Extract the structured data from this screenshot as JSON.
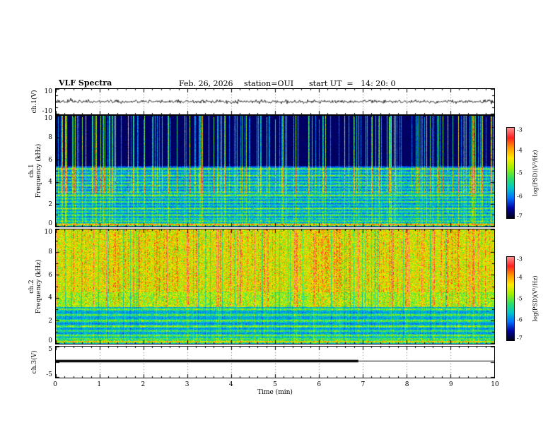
{
  "header": {
    "title": "VLF Spectra",
    "date": "Feb. 26, 2026",
    "station": "station=OUI",
    "start_ut": "start UT  =   14: 20: 0"
  },
  "x_axis": {
    "label": "Time (min)",
    "min": 0,
    "max": 10,
    "ticks": [
      0,
      1,
      2,
      3,
      4,
      5,
      6,
      7,
      8,
      9,
      10
    ]
  },
  "colorbar": {
    "label": "log(PSD)(V²/Hz)",
    "min": -7,
    "max": -3,
    "ticks": [
      -3,
      -4,
      -5,
      -6,
      -7
    ],
    "gradient": [
      "#ff9090",
      "#ff2020",
      "#ff9800",
      "#ffe800",
      "#a0f000",
      "#30e060",
      "#00c8c8",
      "#0070ff",
      "#0000a0",
      "#000018"
    ]
  },
  "panels": {
    "wave1": {
      "ylabel": "ch.1(V)",
      "ymin": -10,
      "ymax": 10,
      "ytick_labels": [
        10,
        -10
      ],
      "ytick_major": [
        10,
        0,
        -10
      ],
      "ytick_minor": [
        5,
        -5
      ]
    },
    "spec1": {
      "ylabel_line1": "ch.1",
      "ylabel_line2": "Frequency (kHz)",
      "ymin": 0,
      "ymax": 10,
      "ytick_labels": [
        10,
        8,
        6,
        4,
        2,
        0
      ],
      "ytick_major": [
        0,
        2,
        4,
        6,
        8,
        10
      ],
      "ytick_minor": [
        1,
        3,
        5,
        7,
        9
      ]
    },
    "spec2": {
      "ylabel_line1": "ch.2",
      "ylabel_line2": "Frequency (kHz)",
      "ymin": 0,
      "ymax": 10,
      "ytick_labels": [
        10,
        8,
        6,
        4,
        2,
        0
      ],
      "ytick_major": [
        0,
        2,
        4,
        6,
        8,
        10
      ],
      "ytick_minor": [
        1,
        3,
        5,
        7,
        9
      ]
    },
    "ch3": {
      "ylabel": "ch.3(V)",
      "ymin": -5,
      "ymax": 5,
      "ytick_labels": [
        5,
        -5
      ],
      "ytick_major": [
        5,
        0,
        -5
      ],
      "ytick_minor": []
    }
  },
  "chart_data": [
    {
      "type": "line",
      "name": "ch1_waveform",
      "panel": "wave1",
      "ylabel": "ch.1(V)",
      "ylim": [
        -10,
        10
      ],
      "x_minutes": [
        0,
        10
      ],
      "signal": {
        "kind": "continuous broadband noise centered on 0 V",
        "mean_V": 0,
        "rms_V": 1.3,
        "peak_V": 4
      }
    },
    {
      "type": "heatmap",
      "name": "ch1_spectrogram",
      "panel": "spec1",
      "ylabel": "ch.1 Frequency (kHz)",
      "ylim_khz": [
        0,
        10
      ],
      "x_minutes": [
        0,
        10
      ],
      "zlabel": "log(PSD)(V²/Hz)",
      "zlim": [
        -7,
        -3
      ],
      "background": [
        {
          "f_min": 5.5,
          "f_max": 10.01,
          "log_psd": -6.75
        },
        {
          "f_min": 0,
          "f_max": 5.5,
          "log_psd": -6.35
        }
      ],
      "bands": [
        {
          "f_khz": 5.2,
          "log_psd": -5.0
        },
        {
          "f_khz": 4.9,
          "log_psd": -5.5
        },
        {
          "f_khz": 4.6,
          "log_psd": -5.1
        },
        {
          "f_khz": 4.3,
          "log_psd": -5.5
        },
        {
          "f_khz": 4.0,
          "log_psd": -5.3
        },
        {
          "f_khz": 3.7,
          "log_psd": -5.1
        },
        {
          "f_khz": 3.4,
          "log_psd": -5.5
        },
        {
          "f_khz": 3.1,
          "log_psd": -5.2
        },
        {
          "f_khz": 2.8,
          "log_psd": -4.9
        },
        {
          "f_khz": 2.5,
          "log_psd": -5.4
        },
        {
          "f_khz": 2.2,
          "log_psd": -5.2
        },
        {
          "f_khz": 1.9,
          "log_psd": -5.5
        },
        {
          "f_khz": 1.6,
          "log_psd": -5.0
        },
        {
          "f_khz": 1.3,
          "log_psd": -5.3
        },
        {
          "f_khz": 1.0,
          "log_psd": -5.1
        },
        {
          "f_khz": 0.7,
          "log_psd": -5.4
        },
        {
          "f_khz": 0.45,
          "log_psd": -5.2
        },
        {
          "f_khz": 0.15,
          "log_psd": -3.8
        }
      ],
      "texture": {
        "streak_prob": 0.22,
        "streak_gain": 0.5,
        "strong_prob": 0.03,
        "strong_gain": 0.55,
        "dip_prob": 0,
        "dip_gain": 0,
        "f_split_khz": 3,
        "low_gain": 0.35
      },
      "note": "dark (~-6.8) background above 5.5 kHz crossed by impulsive broadband vertical sferic streaks; dense horizontal narrowband lines below 5.5 kHz; values estimated from colorbar"
    },
    {
      "type": "heatmap",
      "name": "ch2_spectrogram",
      "panel": "spec2",
      "ylabel": "ch.2 Frequency (kHz)",
      "ylim_khz": [
        0,
        10
      ],
      "x_minutes": [
        0,
        10
      ],
      "zlabel": "log(PSD)(V²/Hz)",
      "zlim": [
        -7,
        -3
      ],
      "background": [
        {
          "f_min": 4.5,
          "f_max": 10.01,
          "log_psd": -4.5
        },
        {
          "f_min": 3.2,
          "f_max": 4.5,
          "log_psd": -4.8
        },
        {
          "f_min": 1.8,
          "f_max": 3.2,
          "log_psd": -5.9
        },
        {
          "f_min": 0,
          "f_max": 1.8,
          "log_psd": -6.0
        }
      ],
      "bands": [
        {
          "f_khz": 3.0,
          "log_psd": -5.0
        },
        {
          "f_khz": 2.5,
          "log_psd": -5.1
        },
        {
          "f_khz": 2.0,
          "log_psd": -5.0
        },
        {
          "f_khz": 1.5,
          "log_psd": -4.9
        },
        {
          "f_khz": 1.1,
          "log_psd": -5.2
        },
        {
          "f_khz": 0.7,
          "log_psd": -5.0
        },
        {
          "f_khz": 0.4,
          "log_psd": -5.1
        },
        {
          "f_khz": 0.15,
          "log_psd": -4.2
        }
      ],
      "texture": {
        "streak_prob": 0.3,
        "streak_gain": 0.22,
        "strong_prob": 0.05,
        "strong_gain": 0.3,
        "dip_prob": 0.06,
        "dip_gain": 0.18,
        "f_split_khz": 3.2,
        "low_gain": 0.3
      },
      "note": "bright yellow-green band above ~4.5 kHz with dense vertical striations; blue background with green narrowband lines below ~3 kHz; values estimated from colorbar"
    },
    {
      "type": "line",
      "name": "ch3_signal",
      "panel": "ch3",
      "ylabel": "ch.3(V)",
      "ylim": [
        -5,
        5
      ],
      "segments": [
        {
          "t_start_min": 0,
          "t_end_min": 6.9,
          "value_V": 0.3,
          "style": "thick"
        },
        {
          "t_start_min": 6.9,
          "t_end_min": 10,
          "value_V": 0.3,
          "style": "thin"
        }
      ]
    }
  ]
}
